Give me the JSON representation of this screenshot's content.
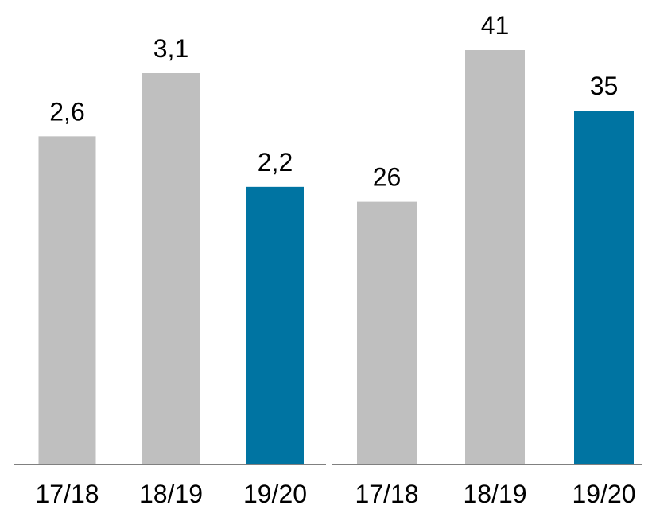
{
  "chart_data": [
    {
      "type": "bar",
      "categories": [
        "17/18",
        "18/19",
        "19/20"
      ],
      "values": [
        2.6,
        3.1,
        2.2
      ],
      "value_labels": [
        "2,6",
        "3,1",
        "2,2"
      ],
      "colors": [
        "#bfbfbf",
        "#bfbfbf",
        "#0074a2"
      ]
    },
    {
      "type": "bar",
      "categories": [
        "17/18",
        "18/19",
        "19/20"
      ],
      "values": [
        26,
        41,
        35
      ],
      "colors": [
        "#bfbfbf",
        "#bfbfbf",
        "#0074a2"
      ]
    }
  ]
}
